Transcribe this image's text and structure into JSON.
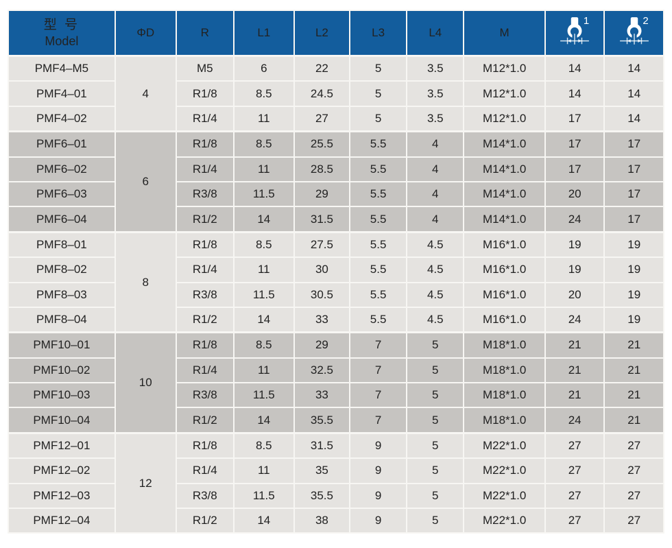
{
  "colors": {
    "header_blue": "#135d9d",
    "row_light": "#e5e3e0",
    "row_dark": "#c6c4c1",
    "separator": "#f7f6f3",
    "text": "#222222"
  },
  "table": {
    "header": {
      "model": {
        "zh": "型 号",
        "en": "Model"
      },
      "labels": [
        "ΦD",
        "R",
        "L1",
        "L2",
        "L3",
        "L4",
        "M"
      ],
      "wrench_columns": [
        {
          "icon": "wrench-width-icon",
          "sup": "1"
        },
        {
          "icon": "wrench-width-icon",
          "sup": "2"
        }
      ]
    },
    "groups": [
      {
        "d": "4",
        "shade": "light",
        "rows": [
          {
            "model": "PMF4–M5",
            "r": "M5",
            "l1": "6",
            "l2": "22",
            "l3": "5",
            "l4": "3.5",
            "m": "M12*1.0",
            "w1": "14",
            "w2": "14"
          },
          {
            "model": "PMF4–01",
            "r": "R1/8",
            "l1": "8.5",
            "l2": "24.5",
            "l3": "5",
            "l4": "3.5",
            "m": "M12*1.0",
            "w1": "14",
            "w2": "14"
          },
          {
            "model": "PMF4–02",
            "r": "R1/4",
            "l1": "11",
            "l2": "27",
            "l3": "5",
            "l4": "3.5",
            "m": "M12*1.0",
            "w1": "17",
            "w2": "14"
          }
        ]
      },
      {
        "d": "6",
        "shade": "dark",
        "rows": [
          {
            "model": "PMF6–01",
            "r": "R1/8",
            "l1": "8.5",
            "l2": "25.5",
            "l3": "5.5",
            "l4": "4",
            "m": "M14*1.0",
            "w1": "17",
            "w2": "17"
          },
          {
            "model": "PMF6–02",
            "r": "R1/4",
            "l1": "11",
            "l2": "28.5",
            "l3": "5.5",
            "l4": "4",
            "m": "M14*1.0",
            "w1": "17",
            "w2": "17"
          },
          {
            "model": "PMF6–03",
            "r": "R3/8",
            "l1": "11.5",
            "l2": "29",
            "l3": "5.5",
            "l4": "4",
            "m": "M14*1.0",
            "w1": "20",
            "w2": "17"
          },
          {
            "model": "PMF6–04",
            "r": "R1/2",
            "l1": "14",
            "l2": "31.5",
            "l3": "5.5",
            "l4": "4",
            "m": "M14*1.0",
            "w1": "24",
            "w2": "17"
          }
        ]
      },
      {
        "d": "8",
        "shade": "light",
        "rows": [
          {
            "model": "PMF8–01",
            "r": "R1/8",
            "l1": "8.5",
            "l2": "27.5",
            "l3": "5.5",
            "l4": "4.5",
            "m": "M16*1.0",
            "w1": "19",
            "w2": "19"
          },
          {
            "model": "PMF8–02",
            "r": "R1/4",
            "l1": "11",
            "l2": "30",
            "l3": "5.5",
            "l4": "4.5",
            "m": "M16*1.0",
            "w1": "19",
            "w2": "19"
          },
          {
            "model": "PMF8–03",
            "r": "R3/8",
            "l1": "11.5",
            "l2": "30.5",
            "l3": "5.5",
            "l4": "4.5",
            "m": "M16*1.0",
            "w1": "20",
            "w2": "19"
          },
          {
            "model": "PMF8–04",
            "r": "R1/2",
            "l1": "14",
            "l2": "33",
            "l3": "5.5",
            "l4": "4.5",
            "m": "M16*1.0",
            "w1": "24",
            "w2": "19"
          }
        ]
      },
      {
        "d": "10",
        "shade": "dark",
        "rows": [
          {
            "model": "PMF10–01",
            "r": "R1/8",
            "l1": "8.5",
            "l2": "29",
            "l3": "7",
            "l4": "5",
            "m": "M18*1.0",
            "w1": "21",
            "w2": "21"
          },
          {
            "model": "PMF10–02",
            "r": "R1/4",
            "l1": "11",
            "l2": "32.5",
            "l3": "7",
            "l4": "5",
            "m": "M18*1.0",
            "w1": "21",
            "w2": "21"
          },
          {
            "model": "PMF10–03",
            "r": "R3/8",
            "l1": "11.5",
            "l2": "33",
            "l3": "7",
            "l4": "5",
            "m": "M18*1.0",
            "w1": "21",
            "w2": "21"
          },
          {
            "model": "PMF10–04",
            "r": "R1/2",
            "l1": "14",
            "l2": "35.5",
            "l3": "7",
            "l4": "5",
            "m": "M18*1.0",
            "w1": "24",
            "w2": "21"
          }
        ]
      },
      {
        "d": "12",
        "shade": "light",
        "rows": [
          {
            "model": "PMF12–01",
            "r": "R1/8",
            "l1": "8.5",
            "l2": "31.5",
            "l3": "9",
            "l4": "5",
            "m": "M22*1.0",
            "w1": "27",
            "w2": "27"
          },
          {
            "model": "PMF12–02",
            "r": "R1/4",
            "l1": "11",
            "l2": "35",
            "l3": "9",
            "l4": "5",
            "m": "M22*1.0",
            "w1": "27",
            "w2": "27"
          },
          {
            "model": "PMF12–03",
            "r": "R3/8",
            "l1": "11.5",
            "l2": "35.5",
            "l3": "9",
            "l4": "5",
            "m": "M22*1.0",
            "w1": "27",
            "w2": "27"
          },
          {
            "model": "PMF12–04",
            "r": "R1/2",
            "l1": "14",
            "l2": "38",
            "l3": "9",
            "l4": "5",
            "m": "M22*1.0",
            "w1": "27",
            "w2": "27"
          }
        ]
      }
    ]
  }
}
